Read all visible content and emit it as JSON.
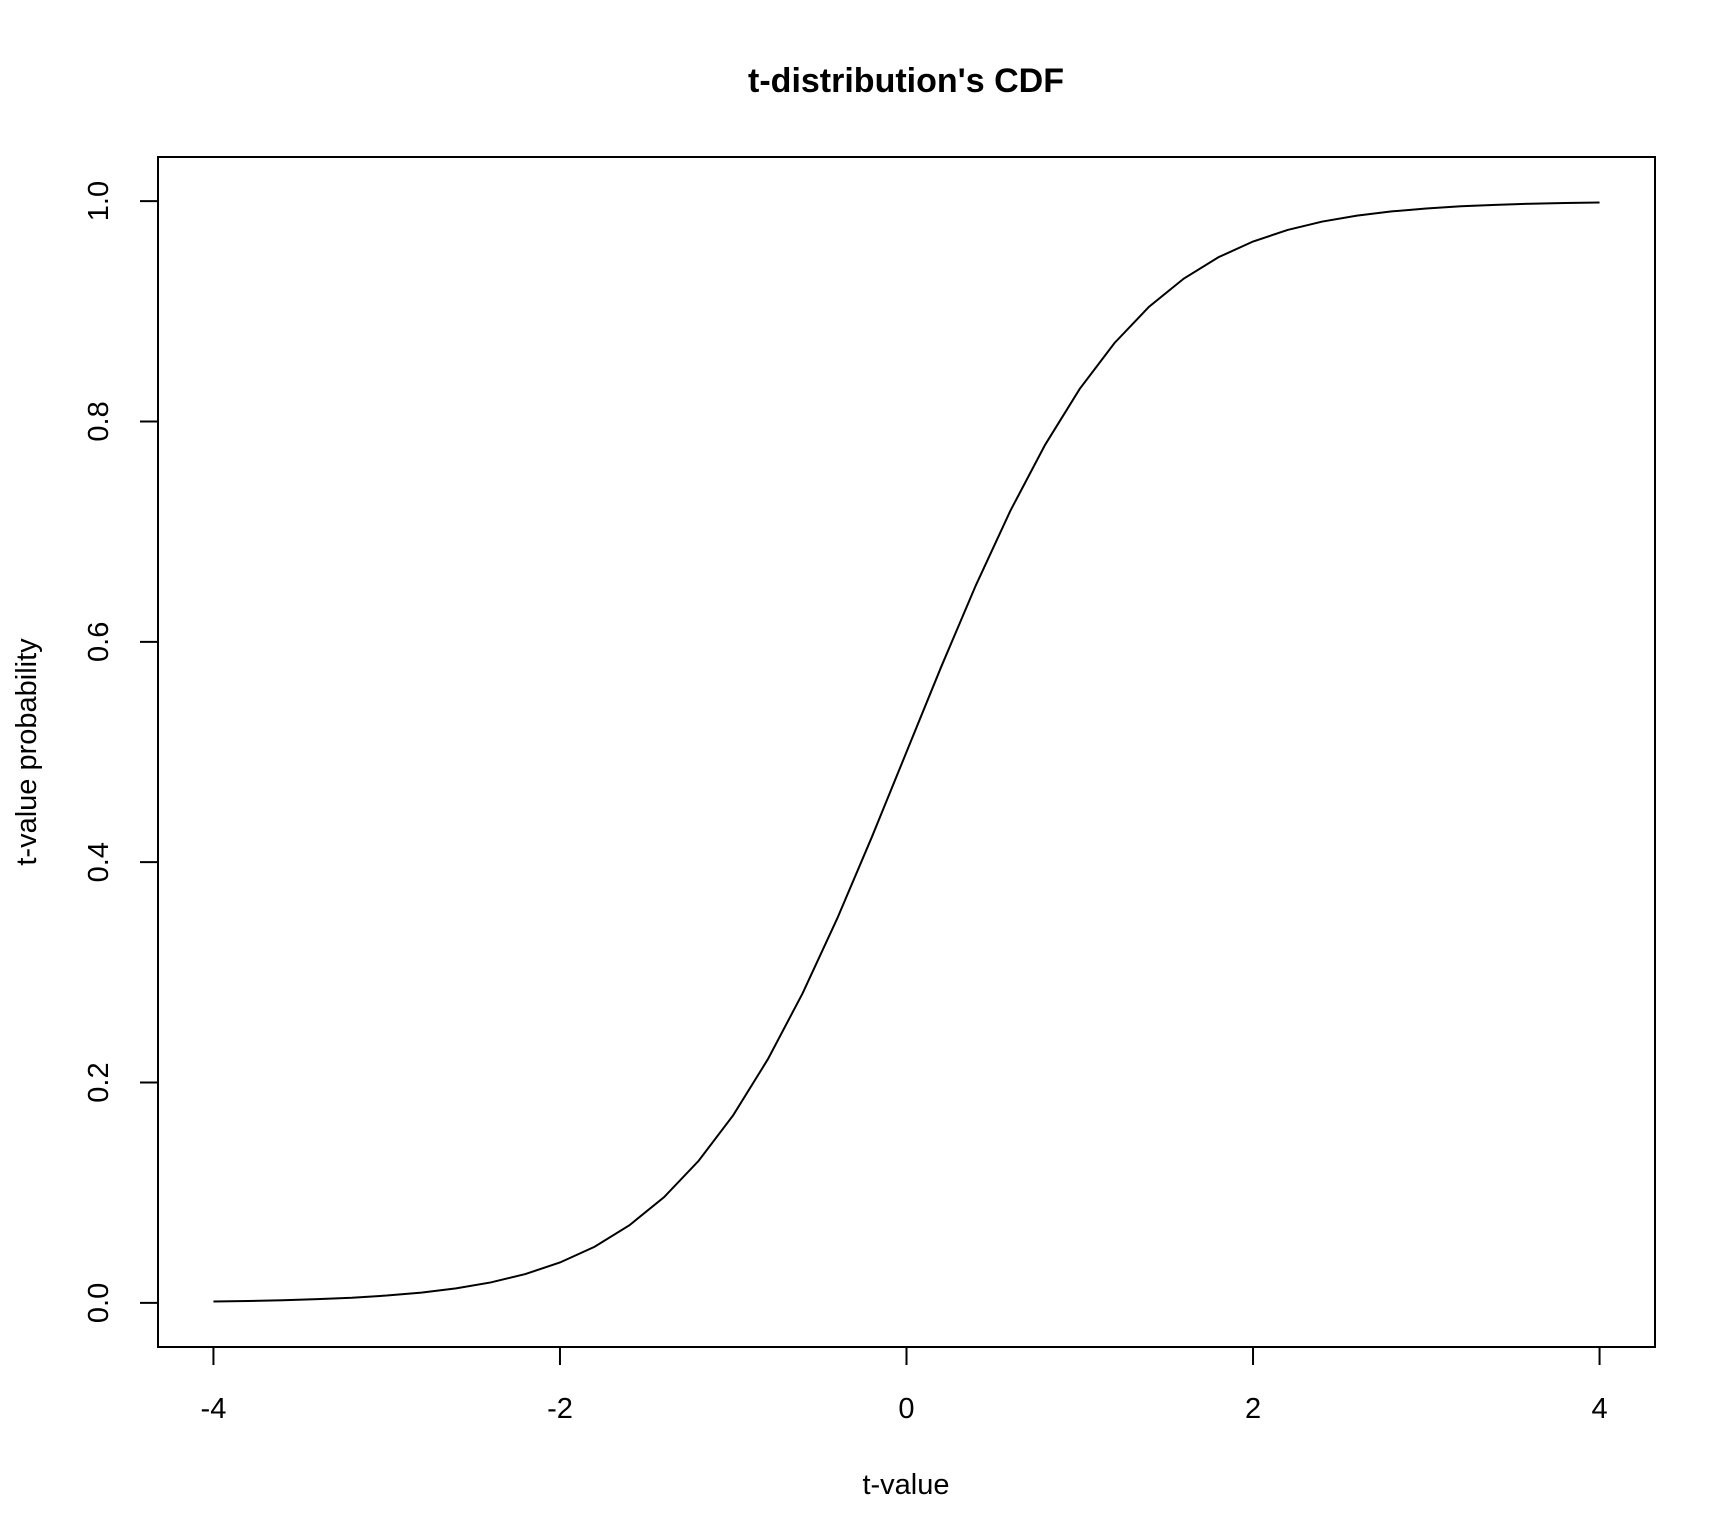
{
  "chart_data": {
    "type": "line",
    "title": "t-distribution's CDF",
    "x_label": "t-value",
    "y_label": "t-value probability",
    "x": [
      -4,
      -3.8,
      -3.6,
      -3.4,
      -3.2,
      -3,
      -2.8,
      -2.6,
      -2.4,
      -2.2,
      -2,
      -1.8,
      -1.6,
      -1.4,
      -1.2,
      -1,
      -0.8,
      -0.6,
      -0.4,
      -0.2,
      0,
      0.2,
      0.4,
      0.6,
      0.8,
      1,
      1.2,
      1.4,
      1.6,
      1.8,
      2,
      2.2,
      2.4,
      2.6,
      2.8,
      3,
      3.2,
      3.4,
      3.6,
      3.8,
      4
    ],
    "series": [
      {
        "name": "t-value probability",
        "color": "#000000",
        "values": [
          0.0013,
          0.0017,
          0.0024,
          0.0034,
          0.0047,
          0.0067,
          0.0094,
          0.0132,
          0.0186,
          0.0262,
          0.0367,
          0.051,
          0.0704,
          0.0959,
          0.1289,
          0.1704,
          0.2212,
          0.2809,
          0.3488,
          0.4228,
          0.5,
          0.5772,
          0.6512,
          0.7191,
          0.7788,
          0.8296,
          0.8711,
          0.9041,
          0.9296,
          0.949,
          0.9633,
          0.9738,
          0.9814,
          0.9868,
          0.9906,
          0.9933,
          0.9953,
          0.9966,
          0.9976,
          0.9983,
          0.9987
        ]
      }
    ],
    "xlim": [
      -4.32,
      4.32
    ],
    "ylim": [
      -0.04,
      1.04
    ],
    "xticks": [
      -4,
      -2,
      0,
      2,
      4
    ],
    "yticks": [
      {
        "value": 0,
        "label": "0.0"
      },
      {
        "value": 0.2,
        "label": "0.2"
      },
      {
        "value": 0.4,
        "label": "0.4"
      },
      {
        "value": 0.6,
        "label": "0.6"
      },
      {
        "value": 0.8,
        "label": "0.8"
      },
      {
        "value": 1,
        "label": "1.0"
      }
    ]
  }
}
